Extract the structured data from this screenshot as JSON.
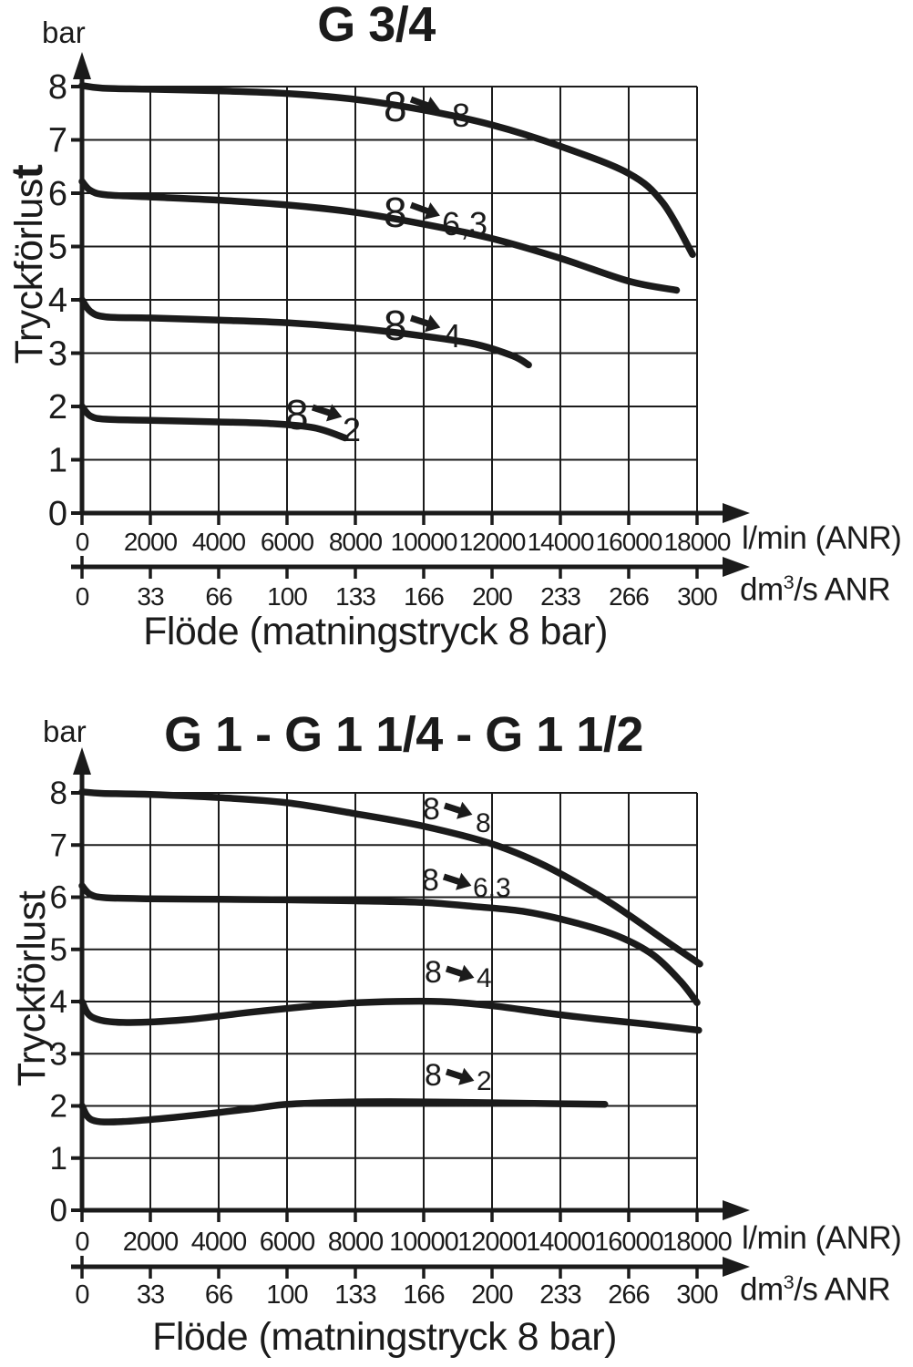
{
  "colors": {
    "ink": "#1b1b1b",
    "background": "#ffffff"
  },
  "chart_data": [
    {
      "type": "line",
      "title": "G 3/4",
      "y_unit_label": "bar",
      "ylabel": "Tryckförlust",
      "ylabel_main": "Tryckförlus",
      "ylabel_bold_tail": "t",
      "xlabel": "Flöde (matningstryck 8 bar)",
      "ylim": [
        0,
        8
      ],
      "xlim": [
        0,
        18000
      ],
      "y_ticks": [
        0,
        1,
        2,
        3,
        4,
        5,
        6,
        7,
        8
      ],
      "grid": true,
      "legend_position": "none",
      "x_axes": [
        {
          "unit": "l/min (ANR)",
          "ticks": [
            0,
            2000,
            4000,
            6000,
            8000,
            10000,
            12000,
            14000,
            16000,
            18000
          ]
        },
        {
          "unit": "dm3/s ANR",
          "unit_pre": "dm",
          "unit_sup": "3",
          "unit_post": "/s  ANR",
          "ticks": [
            0,
            33,
            66,
            100,
            133,
            166,
            200,
            233,
            266,
            300
          ]
        }
      ],
      "series": [
        {
          "from": "8",
          "to": "8",
          "label": "8 → 8",
          "points": [
            [
              0,
              8.02
            ],
            [
              600,
              7.97
            ],
            [
              2000,
              7.95
            ],
            [
              4000,
              7.92
            ],
            [
              6000,
              7.87
            ],
            [
              8000,
              7.76
            ],
            [
              10000,
              7.56
            ],
            [
              12000,
              7.28
            ],
            [
              14000,
              6.88
            ],
            [
              16000,
              6.37
            ],
            [
              17000,
              5.82
            ],
            [
              17870,
              4.85
            ]
          ]
        },
        {
          "from": "8",
          "to": "6,3",
          "label": "8 → 6,3",
          "points": [
            [
              0,
              6.22
            ],
            [
              250,
              6.05
            ],
            [
              700,
              5.97
            ],
            [
              2000,
              5.93
            ],
            [
              4000,
              5.87
            ],
            [
              6000,
              5.78
            ],
            [
              8000,
              5.64
            ],
            [
              10000,
              5.42
            ],
            [
              12000,
              5.15
            ],
            [
              14000,
              4.78
            ],
            [
              16000,
              4.35
            ],
            [
              17400,
              4.18
            ]
          ]
        },
        {
          "from": "8",
          "to": "4",
          "label": "8 → 4",
          "points": [
            [
              0,
              4.0
            ],
            [
              250,
              3.78
            ],
            [
              700,
              3.68
            ],
            [
              2000,
              3.66
            ],
            [
              4000,
              3.62
            ],
            [
              6000,
              3.57
            ],
            [
              8000,
              3.47
            ],
            [
              10000,
              3.32
            ],
            [
              11500,
              3.17
            ],
            [
              12600,
              2.95
            ],
            [
              13070,
              2.78
            ]
          ]
        },
        {
          "from": "8",
          "to": "2",
          "label": "8 → 2",
          "points": [
            [
              0,
              2.0
            ],
            [
              250,
              1.82
            ],
            [
              700,
              1.76
            ],
            [
              2000,
              1.74
            ],
            [
              4000,
              1.71
            ],
            [
              5500,
              1.68
            ],
            [
              6800,
              1.6
            ],
            [
              7700,
              1.41
            ]
          ]
        }
      ]
    },
    {
      "type": "line",
      "title": "G 1 - G 1 1/4 - G 1 1/2",
      "y_unit_label": "bar",
      "ylabel": "Tryckförlust",
      "ylabel_main": "Tryckförlust",
      "ylabel_bold_tail": "",
      "xlabel": "Flöde (matningstryck 8 bar)",
      "ylim": [
        0,
        8
      ],
      "xlim": [
        0,
        18000
      ],
      "y_ticks": [
        0,
        1,
        2,
        3,
        4,
        5,
        6,
        7,
        8
      ],
      "grid": true,
      "legend_position": "none",
      "x_axes": [
        {
          "unit": "l/min (ANR)",
          "ticks": [
            0,
            2000,
            4000,
            6000,
            8000,
            10000,
            12000,
            14000,
            16000,
            18000
          ]
        },
        {
          "unit": "dm3/s ANR",
          "unit_pre": "dm",
          "unit_sup": "3",
          "unit_post": "/s  ANR",
          "ticks": [
            0,
            33,
            66,
            100,
            133,
            166,
            200,
            233,
            266,
            300
          ]
        }
      ],
      "series": [
        {
          "from": "8",
          "to": "8",
          "label": "8 → 8",
          "points": [
            [
              0,
              8.02
            ],
            [
              600,
              7.99
            ],
            [
              2000,
              7.97
            ],
            [
              4000,
              7.91
            ],
            [
              6000,
              7.81
            ],
            [
              8000,
              7.6
            ],
            [
              10000,
              7.36
            ],
            [
              12000,
              7.02
            ],
            [
              13500,
              6.62
            ],
            [
              15000,
              6.08
            ],
            [
              16000,
              5.66
            ],
            [
              17000,
              5.2
            ],
            [
              18080,
              4.72
            ]
          ]
        },
        {
          "from": "8",
          "to": "6,3",
          "label": "8 → 6,3",
          "points": [
            [
              0,
              6.22
            ],
            [
              250,
              6.05
            ],
            [
              700,
              5.99
            ],
            [
              2000,
              5.97
            ],
            [
              4000,
              5.96
            ],
            [
              6000,
              5.95
            ],
            [
              8000,
              5.93
            ],
            [
              10000,
              5.9
            ],
            [
              11500,
              5.82
            ],
            [
              13000,
              5.72
            ],
            [
              14500,
              5.5
            ],
            [
              15700,
              5.25
            ],
            [
              16700,
              4.9
            ],
            [
              17500,
              4.4
            ],
            [
              18000,
              3.98
            ]
          ]
        },
        {
          "from": "8",
          "to": "4",
          "label": "8 → 4",
          "points": [
            [
              0,
              4.0
            ],
            [
              300,
              3.7
            ],
            [
              1200,
              3.6
            ],
            [
              3000,
              3.65
            ],
            [
              5000,
              3.8
            ],
            [
              7000,
              3.93
            ],
            [
              8500,
              3.99
            ],
            [
              10500,
              4.0
            ],
            [
              12000,
              3.92
            ],
            [
              13600,
              3.78
            ],
            [
              15000,
              3.67
            ],
            [
              16500,
              3.57
            ],
            [
              18050,
              3.45
            ]
          ]
        },
        {
          "from": "8",
          "to": "2",
          "label": "8 → 2",
          "points": [
            [
              0,
              2.0
            ],
            [
              300,
              1.73
            ],
            [
              1200,
              1.7
            ],
            [
              3000,
              1.8
            ],
            [
              5000,
              1.95
            ],
            [
              6000,
              2.03
            ],
            [
              7500,
              2.07
            ],
            [
              9000,
              2.08
            ],
            [
              11000,
              2.07
            ],
            [
              13000,
              2.05
            ],
            [
              15300,
              2.03
            ]
          ]
        }
      ]
    }
  ]
}
